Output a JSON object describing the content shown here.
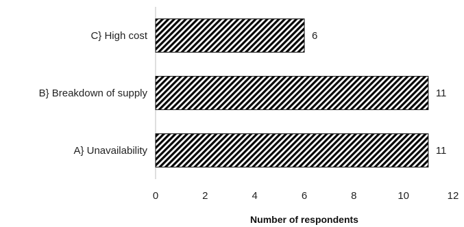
{
  "chart_data": {
    "type": "bar",
    "orientation": "horizontal",
    "categories": [
      "A} Unavailability",
      "B} Breakdown of supply",
      "C} High cost"
    ],
    "values": [
      11,
      11,
      6
    ],
    "data_labels": [
      "11",
      "11",
      "6"
    ],
    "xlabel": "Number of respondents",
    "ylabel": "",
    "title": "",
    "xlim": [
      0,
      12
    ],
    "xticks": [
      0,
      2,
      4,
      6,
      8,
      10,
      12
    ],
    "xtick_labels": [
      "0",
      "2",
      "4",
      "6",
      "8",
      "10",
      "12"
    ],
    "grid": false,
    "legend": "none",
    "bar_fill": "diagonal-hatch",
    "colors": {
      "bar_stroke": "#000000",
      "hatch": "#000000",
      "axis": "#bfbfbf",
      "text": "#222222"
    }
  }
}
